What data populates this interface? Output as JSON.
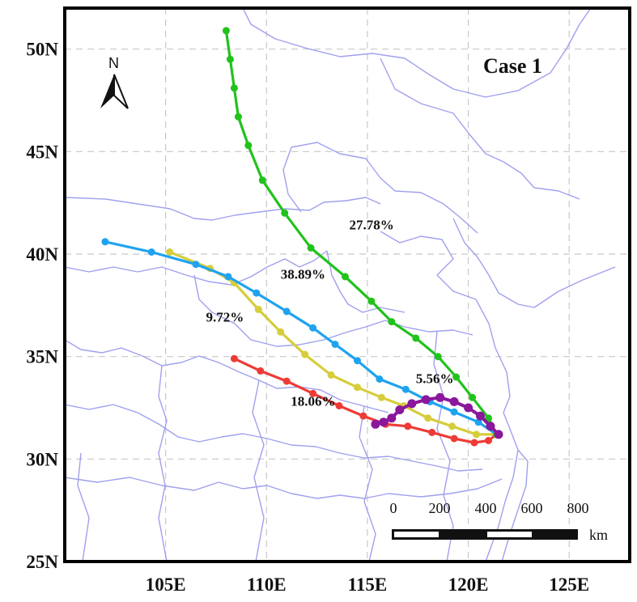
{
  "title": "Case 1",
  "axes": {
    "x_ticks": [
      "105E",
      "110E",
      "115E",
      "120E",
      "125E"
    ],
    "y_ticks": [
      "50N",
      "45N",
      "40N",
      "35N",
      "30N",
      "25N"
    ],
    "x_tick_values": [
      105,
      110,
      115,
      120,
      125
    ],
    "y_tick_values": [
      50,
      45,
      40,
      35,
      30,
      25
    ],
    "lon_range": [
      100,
      128
    ],
    "lat_range": [
      25,
      52
    ],
    "grid": true
  },
  "north_arrow": {
    "label": "N",
    "icon": "north-arrow-icon"
  },
  "scale_bar": {
    "labels": [
      "0",
      "200",
      "400",
      "600",
      "800"
    ],
    "unit": "km"
  },
  "colors": {
    "boundary": "#a0a0ef",
    "green": "#22c21c",
    "blue": "#1fa3ef",
    "yellow": "#d6cd3c",
    "red": "#ee3b36",
    "purple": "#8a179c"
  },
  "chart_data": {
    "type": "scatter",
    "title": "Case 1",
    "xlim": [
      100,
      128
    ],
    "ylim": [
      25,
      52
    ],
    "series": [
      {
        "name": "27.78%",
        "color": "green",
        "points": [
          [
            121.4,
            31.2
          ],
          [
            121.0,
            32.0
          ],
          [
            120.2,
            33.0
          ],
          [
            119.4,
            34.0
          ],
          [
            118.5,
            35.0
          ],
          [
            117.4,
            35.9
          ],
          [
            116.2,
            36.7
          ],
          [
            115.2,
            37.7
          ],
          [
            113.9,
            38.9
          ],
          [
            112.2,
            40.3
          ],
          [
            110.9,
            42.0
          ],
          [
            109.8,
            43.6
          ],
          [
            109.1,
            45.3
          ],
          [
            108.6,
            46.7
          ],
          [
            108.4,
            48.1
          ],
          [
            108.2,
            49.5
          ],
          [
            108.0,
            50.9
          ]
        ],
        "label_pos": [
          114.1,
          41.2
        ]
      },
      {
        "name": "38.89%",
        "color": "blue",
        "points": [
          [
            121.4,
            31.2
          ],
          [
            120.5,
            31.8
          ],
          [
            119.3,
            32.3
          ],
          [
            118.1,
            32.8
          ],
          [
            116.9,
            33.4
          ],
          [
            115.6,
            33.9
          ],
          [
            114.5,
            34.8
          ],
          [
            113.4,
            35.6
          ],
          [
            112.3,
            36.4
          ],
          [
            111.0,
            37.2
          ],
          [
            109.5,
            38.1
          ],
          [
            108.1,
            38.9
          ],
          [
            106.5,
            39.5
          ],
          [
            104.3,
            40.1
          ],
          [
            102.0,
            40.6
          ]
        ],
        "label_pos": [
          110.7,
          38.8
        ]
      },
      {
        "name": "9.72%",
        "color": "yellow",
        "points": [
          [
            121.4,
            31.2
          ],
          [
            120.4,
            31.2
          ],
          [
            119.2,
            31.6
          ],
          [
            118.0,
            32.0
          ],
          [
            116.8,
            32.6
          ],
          [
            115.7,
            33.0
          ],
          [
            114.5,
            33.5
          ],
          [
            113.2,
            34.1
          ],
          [
            111.9,
            35.1
          ],
          [
            110.7,
            36.2
          ],
          [
            109.6,
            37.3
          ],
          [
            108.4,
            38.6
          ],
          [
            107.2,
            39.3
          ],
          [
            105.2,
            40.1
          ]
        ],
        "label_pos": [
          107.0,
          36.7
        ]
      },
      {
        "name": "18.06%",
        "color": "red",
        "points": [
          [
            121.4,
            31.2
          ],
          [
            121.0,
            30.9
          ],
          [
            120.3,
            30.8
          ],
          [
            119.3,
            31.0
          ],
          [
            118.2,
            31.3
          ],
          [
            117.0,
            31.6
          ],
          [
            115.9,
            31.7
          ],
          [
            114.8,
            32.1
          ],
          [
            113.6,
            32.6
          ],
          [
            112.3,
            33.2
          ],
          [
            111.0,
            33.8
          ],
          [
            109.7,
            34.3
          ],
          [
            108.4,
            34.9
          ]
        ],
        "label_pos": [
          111.2,
          32.6
        ]
      },
      {
        "name": "5.56%",
        "color": "purple",
        "points": [
          [
            121.5,
            31.2
          ],
          [
            121.1,
            31.6
          ],
          [
            120.6,
            32.1
          ],
          [
            120.0,
            32.5
          ],
          [
            119.3,
            32.8
          ],
          [
            118.6,
            33.0
          ],
          [
            117.9,
            32.9
          ],
          [
            117.2,
            32.7
          ],
          [
            116.6,
            32.4
          ],
          [
            116.2,
            32.0
          ],
          [
            115.8,
            31.8
          ],
          [
            115.4,
            31.7
          ]
        ],
        "label_pos": [
          117.4,
          33.7
        ]
      }
    ]
  }
}
